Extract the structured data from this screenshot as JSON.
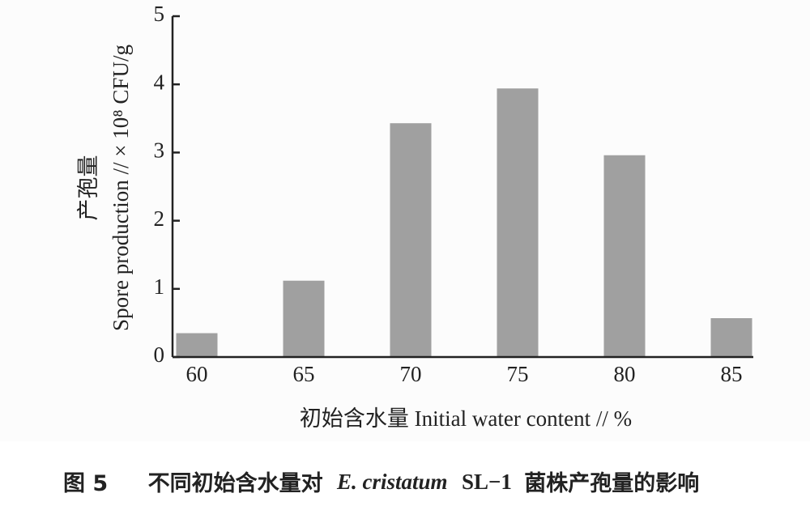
{
  "chart_data": {
    "type": "bar",
    "y_label": [
      "产孢量",
      "Spore production // × 10⁸ CFU/g"
    ],
    "x_label": "初始含水量 Initial water content // %",
    "caption": [
      "图 5",
      "不同初始含水量对",
      "E. cristatum",
      "SL−1",
      "菌株产孢量的影响"
    ],
    "categories": [
      "60",
      "65",
      "70",
      "75",
      "80",
      "85"
    ],
    "values": [
      0.35,
      1.12,
      3.43,
      3.94,
      2.96,
      0.57
    ],
    "color": "#a0a0a0",
    "ylim": [
      0,
      5
    ],
    "yticks": [
      0,
      1,
      2,
      3,
      4,
      5
    ],
    "grid": false
  }
}
